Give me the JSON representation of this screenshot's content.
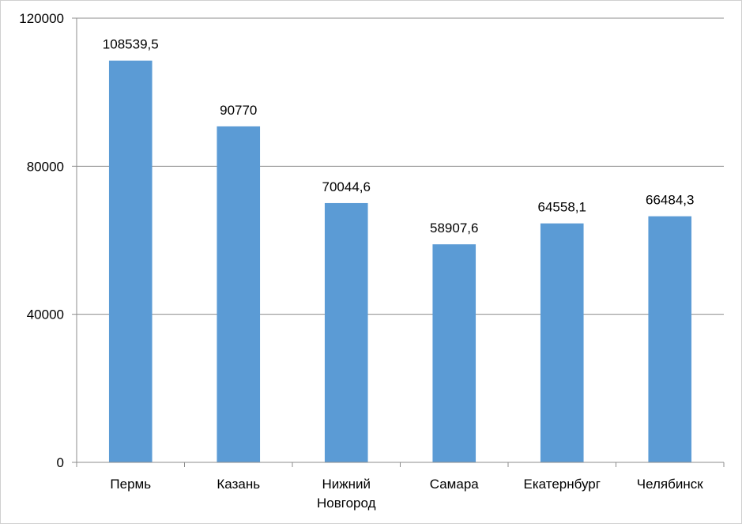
{
  "chart_data": {
    "type": "bar",
    "categories": [
      "Пермь",
      "Казань",
      "Нижний Новгород",
      "Самара",
      "Екатернбург",
      "Челябинск"
    ],
    "category_lines": [
      [
        "Пермь"
      ],
      [
        "Казань"
      ],
      [
        "Нижний",
        "Новгород"
      ],
      [
        "Самара"
      ],
      [
        "Екатернбург"
      ],
      [
        "Челябинск"
      ]
    ],
    "values": [
      108539.5,
      90770,
      70044.6,
      58907.6,
      64558.1,
      66484.3
    ],
    "data_labels": [
      "108539,5",
      "90770",
      "70044,6",
      "58907,6",
      "64558,1",
      "66484,3"
    ],
    "ylim": [
      0,
      120000
    ],
    "yticks": [
      0,
      40000,
      80000,
      120000
    ],
    "ytick_labels": [
      "0",
      "40000",
      "80000",
      "120000"
    ],
    "grid": true,
    "legend": "none",
    "colors": {
      "bar": "#5b9bd5",
      "grid": "#8c8c8c",
      "axis": "#8c8c8c"
    }
  }
}
